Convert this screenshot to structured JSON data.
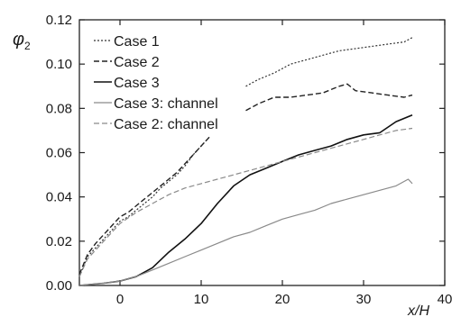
{
  "chart_data": {
    "type": "line",
    "xlabel": "x/H",
    "ylabel": "φ2",
    "xlim": [
      -5,
      40
    ],
    "ylim": [
      0,
      0.12
    ],
    "x_ticks": [
      0,
      10,
      20,
      30,
      40
    ],
    "y_ticks": [
      0.0,
      0.02,
      0.04,
      0.06,
      0.08,
      0.1,
      0.12
    ],
    "x_tick_labels": [
      "0",
      "10",
      "20",
      "30",
      "40"
    ],
    "y_tick_labels": [
      "0.00",
      "0.02",
      "0.04",
      "0.06",
      "0.08",
      "0.10",
      "0.12"
    ],
    "grid": false,
    "legend_position": "top-left",
    "series": [
      {
        "name": "Case 1",
        "style": "dotted",
        "color": "#333333",
        "width": 1.2,
        "segments": [
          [
            [
              -5,
              0.004
            ],
            [
              -4,
              0.013
            ],
            [
              -3,
              0.017
            ],
            [
              -2,
              0.021
            ],
            [
              -1,
              0.025
            ],
            [
              0,
              0.029
            ],
            [
              1,
              0.031
            ],
            [
              2,
              0.034
            ],
            [
              3,
              0.037
            ],
            [
              4,
              0.04
            ],
            [
              5,
              0.044
            ],
            [
              6,
              0.047
            ],
            [
              7,
              0.05
            ],
            [
              8,
              0.054
            ],
            [
              9,
              0.059
            ],
            [
              10,
              0.063
            ],
            [
              11,
              0.067
            ]
          ],
          [
            [
              15.5,
              0.09
            ],
            [
              17,
              0.093
            ],
            [
              19,
              0.096
            ],
            [
              21,
              0.1
            ],
            [
              23,
              0.102
            ],
            [
              25,
              0.104
            ],
            [
              27,
              0.106
            ],
            [
              29,
              0.107
            ],
            [
              31,
              0.108
            ],
            [
              33,
              0.109
            ],
            [
              35,
              0.11
            ],
            [
              36,
              0.112
            ]
          ]
        ]
      },
      {
        "name": "Case 2",
        "style": "dashed",
        "color": "#222222",
        "width": 1.4,
        "segments": [
          [
            [
              -5,
              0.005
            ],
            [
              -4,
              0.014
            ],
            [
              -3,
              0.019
            ],
            [
              -2,
              0.023
            ],
            [
              -1,
              0.027
            ],
            [
              0,
              0.031
            ],
            [
              1,
              0.033
            ],
            [
              2,
              0.036
            ],
            [
              3,
              0.039
            ],
            [
              4,
              0.042
            ],
            [
              5,
              0.045
            ],
            [
              6,
              0.048
            ],
            [
              7,
              0.051
            ],
            [
              8,
              0.055
            ],
            [
              9,
              0.059
            ],
            [
              10,
              0.063
            ],
            [
              11,
              0.067
            ]
          ],
          [
            [
              15.5,
              0.079
            ],
            [
              17,
              0.082
            ],
            [
              19,
              0.085
            ],
            [
              21,
              0.085
            ],
            [
              23,
              0.086
            ],
            [
              25,
              0.087
            ],
            [
              27,
              0.09
            ],
            [
              28,
              0.091
            ],
            [
              29,
              0.088
            ],
            [
              31,
              0.087
            ],
            [
              33,
              0.086
            ],
            [
              35,
              0.085
            ],
            [
              36,
              0.086
            ]
          ]
        ]
      },
      {
        "name": "Case 3",
        "style": "solid",
        "color": "#111111",
        "width": 1.6,
        "segments": [
          [
            [
              -5,
              0.0
            ],
            [
              -2,
              0.001
            ],
            [
              0,
              0.002
            ],
            [
              2,
              0.004
            ],
            [
              4,
              0.008
            ],
            [
              6,
              0.015
            ],
            [
              8,
              0.021
            ],
            [
              10,
              0.028
            ],
            [
              12,
              0.037
            ],
            [
              14,
              0.045
            ],
            [
              16,
              0.05
            ],
            [
              18,
              0.053
            ],
            [
              20,
              0.056
            ],
            [
              22,
              0.059
            ],
            [
              24,
              0.061
            ],
            [
              26,
              0.063
            ],
            [
              28,
              0.066
            ],
            [
              30,
              0.068
            ],
            [
              32,
              0.069
            ],
            [
              34,
              0.074
            ],
            [
              36,
              0.077
            ]
          ]
        ]
      },
      {
        "name": "Case 3: channel",
        "style": "solid",
        "color": "#8a8a8a",
        "width": 1.2,
        "segments": [
          [
            [
              -5,
              0.0
            ],
            [
              -2,
              0.001
            ],
            [
              0,
              0.002
            ],
            [
              2,
              0.004
            ],
            [
              4,
              0.007
            ],
            [
              6,
              0.01
            ],
            [
              8,
              0.013
            ],
            [
              10,
              0.016
            ],
            [
              12,
              0.019
            ],
            [
              14,
              0.022
            ],
            [
              16,
              0.024
            ],
            [
              18,
              0.027
            ],
            [
              20,
              0.03
            ],
            [
              22,
              0.032
            ],
            [
              24,
              0.034
            ],
            [
              26,
              0.037
            ],
            [
              28,
              0.039
            ],
            [
              30,
              0.041
            ],
            [
              32,
              0.043
            ],
            [
              34,
              0.045
            ],
            [
              35.5,
              0.048
            ],
            [
              36,
              0.046
            ]
          ]
        ]
      },
      {
        "name": "Case 2: channel",
        "style": "dashed",
        "color": "#8a8a8a",
        "width": 1.2,
        "segments": [
          [
            [
              -5,
              0.004
            ],
            [
              -4,
              0.012
            ],
            [
              -3,
              0.016
            ],
            [
              -2,
              0.02
            ],
            [
              -1,
              0.024
            ],
            [
              0,
              0.028
            ],
            [
              2,
              0.033
            ],
            [
              4,
              0.037
            ],
            [
              6,
              0.041
            ],
            [
              8,
              0.044
            ],
            [
              10,
              0.046
            ],
            [
              12,
              0.048
            ],
            [
              14,
              0.05
            ],
            [
              16,
              0.052
            ],
            [
              18,
              0.054
            ],
            [
              20,
              0.056
            ],
            [
              22,
              0.058
            ],
            [
              24,
              0.06
            ],
            [
              26,
              0.062
            ],
            [
              28,
              0.064
            ],
            [
              30,
              0.066
            ],
            [
              32,
              0.068
            ],
            [
              34,
              0.07
            ],
            [
              36,
              0.071
            ]
          ]
        ]
      }
    ]
  }
}
